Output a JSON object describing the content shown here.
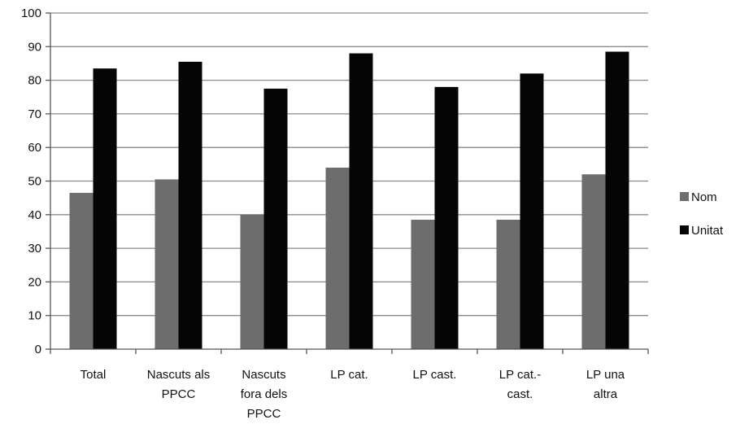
{
  "chart_data": {
    "type": "bar",
    "categories": [
      [
        "Total"
      ],
      [
        "Nascuts als",
        "PPCC"
      ],
      [
        "Nascuts",
        "fora dels",
        "PPCC"
      ],
      [
        "LP cat."
      ],
      [
        "LP cast."
      ],
      [
        "LP cat.-",
        "cast."
      ],
      [
        "LP una",
        "altra"
      ]
    ],
    "series": [
      {
        "name": "Nom",
        "color": "#6d6d6d",
        "values": [
          46.5,
          50.5,
          40,
          54,
          38.5,
          38.5,
          52
        ]
      },
      {
        "name": "Unitat",
        "color": "#050505",
        "values": [
          83.5,
          85.5,
          77.5,
          88,
          78,
          82,
          88.5
        ]
      }
    ],
    "ylim": [
      0,
      100
    ],
    "yticks": [
      "0",
      "10",
      "20",
      "30",
      "40",
      "50",
      "60",
      "70",
      "80",
      "90",
      "100"
    ],
    "grid": true,
    "legend": "right"
  }
}
